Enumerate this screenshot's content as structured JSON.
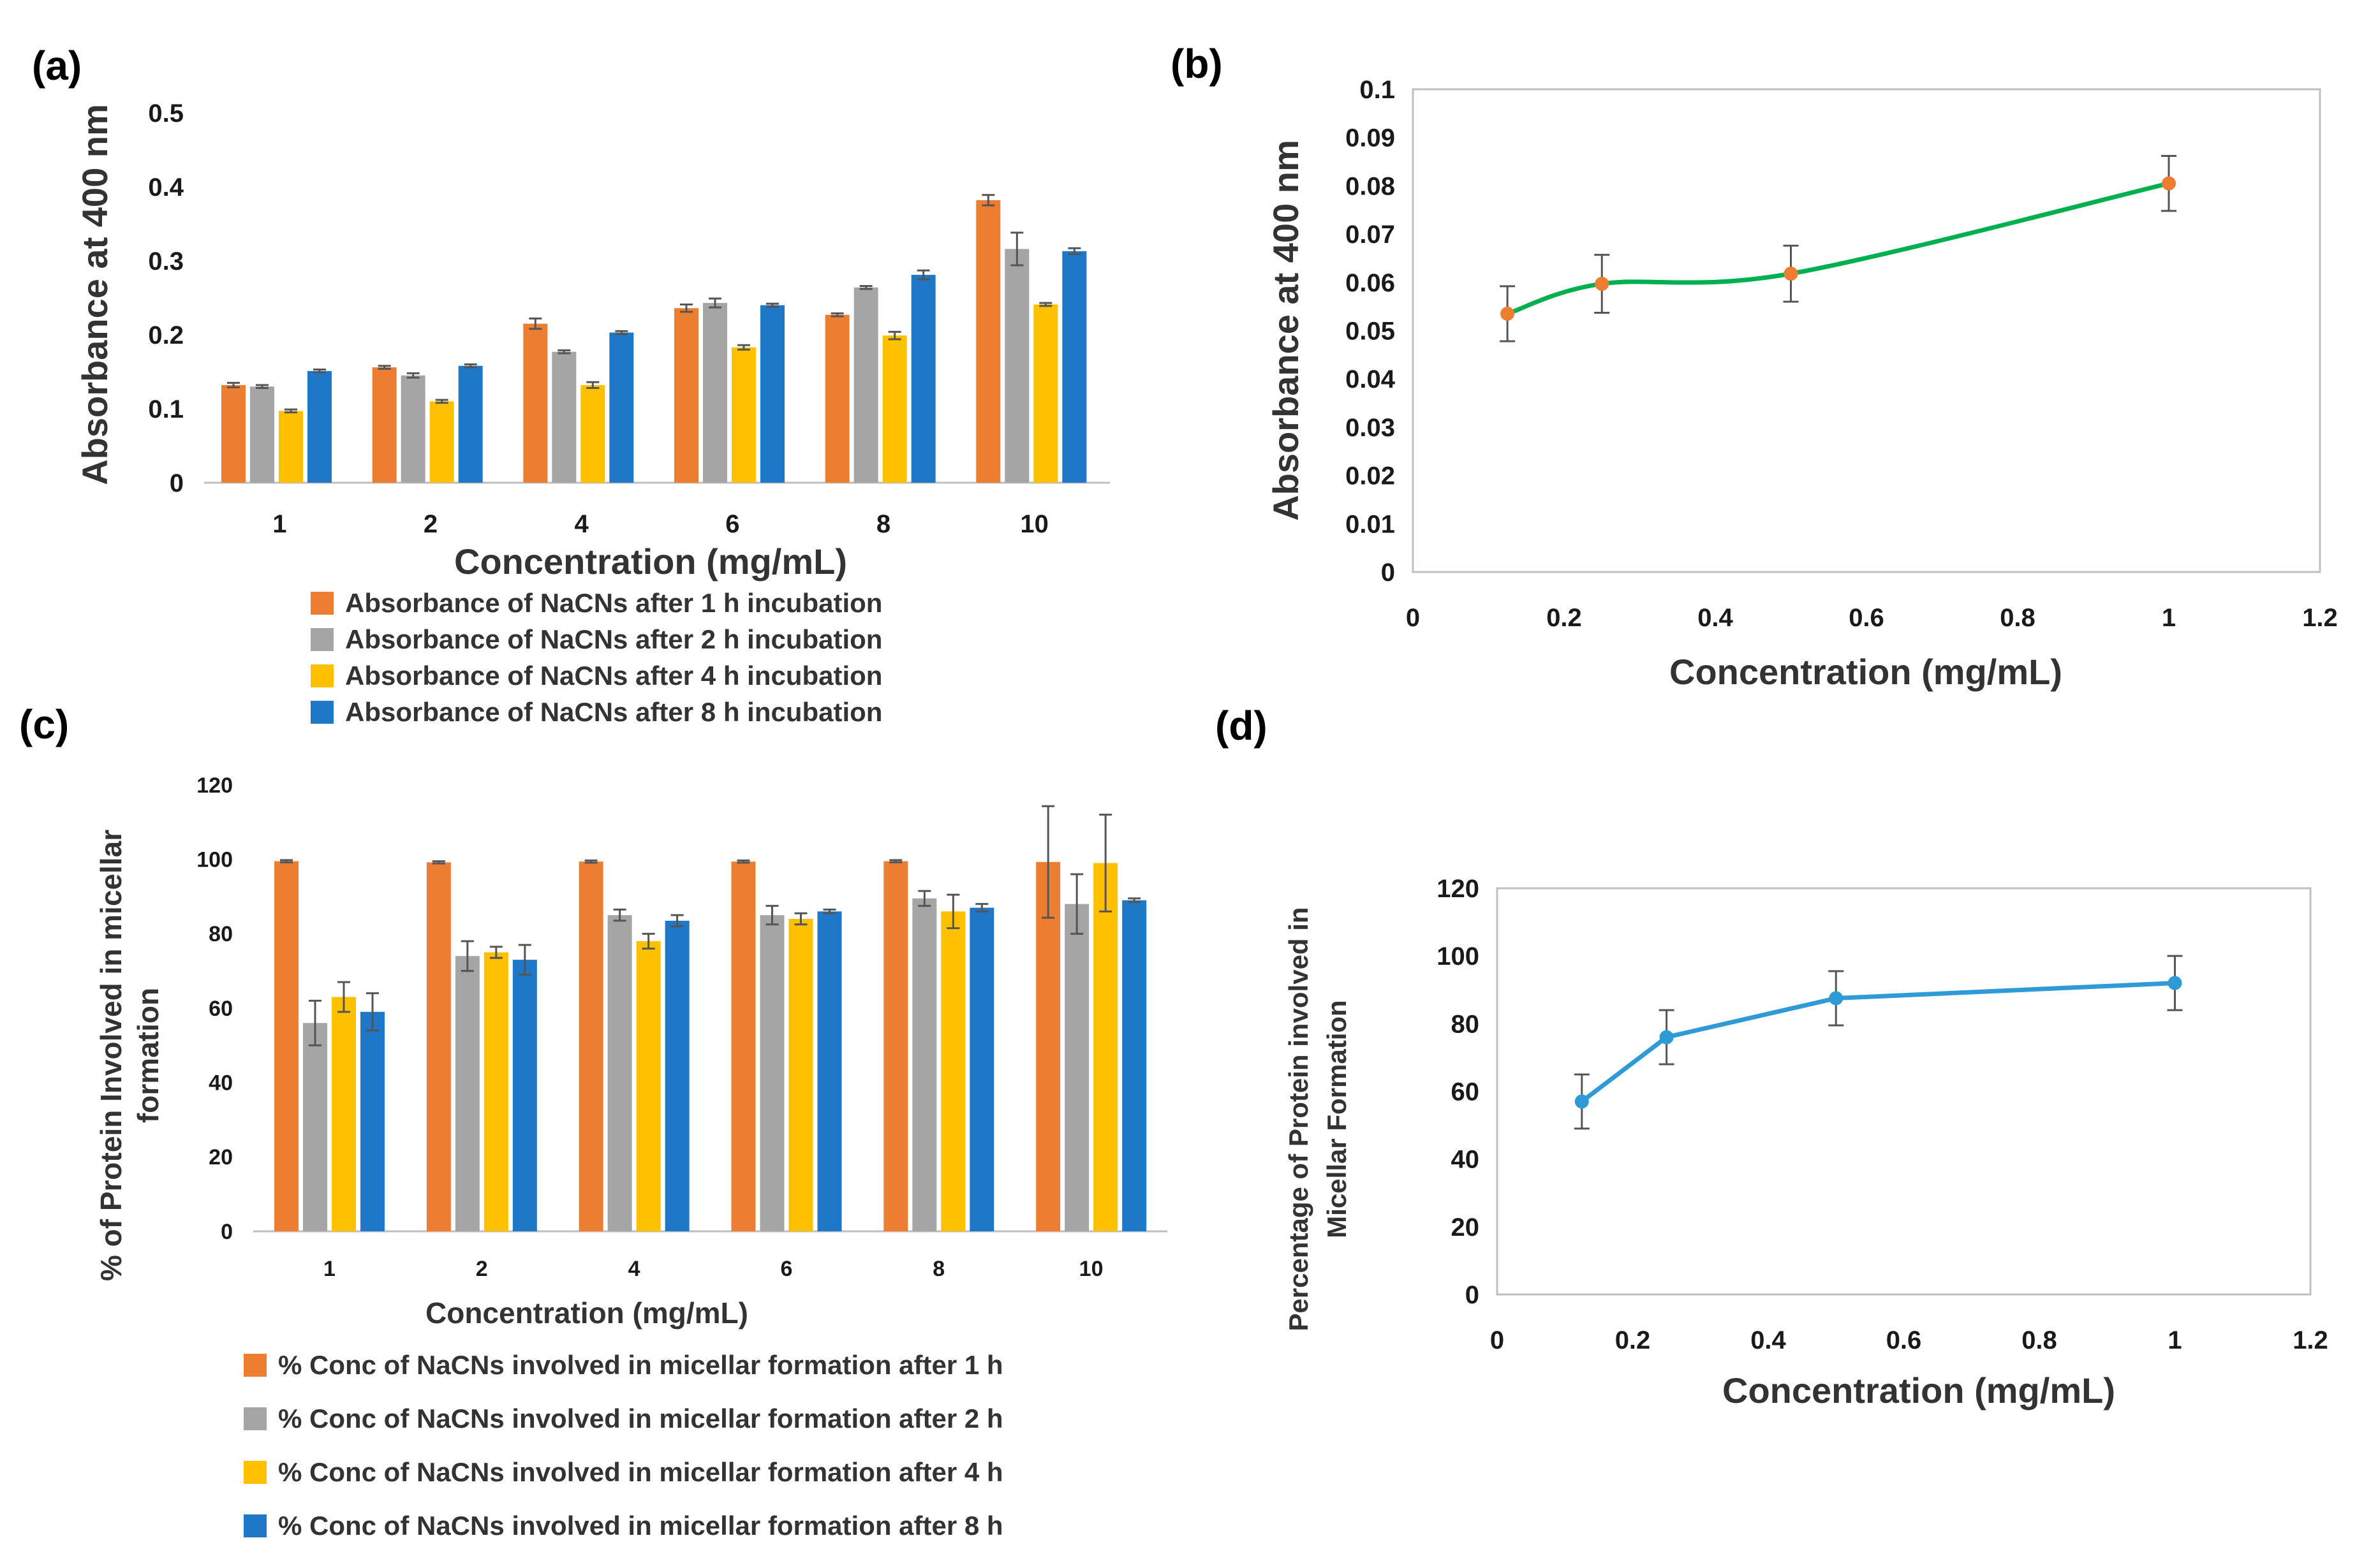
{
  "panels": {
    "a": "(a)",
    "b": "(b)",
    "c": "(c)",
    "d": "(d)"
  },
  "chart_data": [
    {
      "id": "a",
      "type": "bar",
      "title": "",
      "xlabel": "Concentration (mg/mL)",
      "ylabel": "Absorbance at 400 nm",
      "ylim": [
        0,
        0.5
      ],
      "yticks": [
        "0",
        "0.1",
        "0.2",
        "0.3",
        "0.4",
        "0.5"
      ],
      "categories": [
        "1",
        "2",
        "4",
        "6",
        "8",
        "10"
      ],
      "legend_position": "bottom",
      "series": [
        {
          "name": "Absorbance of NaCNs after 1 h incubation",
          "color": "#ED7D31",
          "values": [
            0.132,
            0.156,
            0.215,
            0.236,
            0.227,
            0.382
          ],
          "errors": [
            0.003,
            0.002,
            0.007,
            0.005,
            0.002,
            0.007
          ]
        },
        {
          "name": "Absorbance of NaCNs after 2 h incubation",
          "color": "#A5A5A5",
          "values": [
            0.13,
            0.145,
            0.177,
            0.243,
            0.264,
            0.316
          ],
          "errors": [
            0.002,
            0.003,
            0.002,
            0.006,
            0.002,
            0.022
          ]
        },
        {
          "name": "Absorbance of NaCNs after 4 h incubation",
          "color": "#FFC000",
          "values": [
            0.097,
            0.11,
            0.132,
            0.183,
            0.199,
            0.241
          ],
          "errors": [
            0.002,
            0.002,
            0.004,
            0.003,
            0.005,
            0.002
          ]
        },
        {
          "name": "Absorbance of NaCNs after 8 h incubation",
          "color": "#1F77C8",
          "values": [
            0.151,
            0.158,
            0.203,
            0.24,
            0.281,
            0.313
          ],
          "errors": [
            0.002,
            0.002,
            0.002,
            0.002,
            0.006,
            0.004
          ]
        }
      ]
    },
    {
      "id": "b",
      "type": "line",
      "smooth": true,
      "xlabel": "Concentration (mg/mL)",
      "ylabel": "Absorbance at 400 nm",
      "xlim": [
        0,
        1.2
      ],
      "ylim": [
        0,
        0.1
      ],
      "xticks": [
        "0",
        "0.2",
        "0.4",
        "0.6",
        "0.8",
        "1",
        "1.2"
      ],
      "yticks": [
        "0",
        "0.01",
        "0.02",
        "0.03",
        "0.04",
        "0.05",
        "0.06",
        "0.07",
        "0.08",
        "0.09",
        "0.1"
      ],
      "line_color": "#00B050",
      "marker_color": "#ED7D31",
      "x": [
        0.125,
        0.25,
        0.5,
        1
      ],
      "y": [
        0.0535,
        0.0597,
        0.0618,
        0.0805
      ],
      "errors": [
        0.0057,
        0.006,
        0.0058,
        0.0057
      ]
    },
    {
      "id": "c",
      "type": "bar",
      "xlabel": "Concentration (mg/mL)",
      "ylabel": "% of Protein Involved in micellar formation",
      "ylabel_lines": [
        "% of Protein Involved in micellar",
        "formation"
      ],
      "ylim": [
        0,
        120
      ],
      "yticks": [
        "0",
        "20",
        "40",
        "60",
        "80",
        "100",
        "120"
      ],
      "categories": [
        "1",
        "2",
        "4",
        "6",
        "8",
        "10"
      ],
      "legend_position": "bottom",
      "series": [
        {
          "name": "% Conc of  NaCNs involved in micellar formation after 1 h",
          "color": "#ED7D31",
          "values": [
            99.5,
            99.2,
            99.4,
            99.4,
            99.5,
            99.3
          ],
          "errors": [
            0.3,
            0.3,
            0.3,
            0.3,
            0.3,
            15
          ]
        },
        {
          "name": "% Conc of  NaCNs involved in micellar formation after 2 h",
          "color": "#A5A5A5",
          "values": [
            56,
            74,
            85,
            85,
            89.5,
            88
          ],
          "errors": [
            6,
            4,
            1.5,
            2.5,
            2,
            8
          ]
        },
        {
          "name": "% Conc of  NaCNs involved in micellar formation after 4 h",
          "color": "#FFC000",
          "values": [
            63,
            75,
            78,
            84,
            86,
            99
          ],
          "errors": [
            4,
            1.5,
            2,
            1.5,
            4.5,
            13
          ]
        },
        {
          "name": "% Conc of  NaCNs involved in micellar formation after 8 h",
          "color": "#1F77C8",
          "values": [
            59,
            73,
            83.5,
            86,
            87,
            89
          ],
          "errors": [
            5,
            4,
            1.5,
            0.5,
            1,
            0.5
          ]
        }
      ]
    },
    {
      "id": "d",
      "type": "line",
      "xlabel": "Concentration (mg/mL)",
      "ylabel": "Percentage of Protein involved in Micellar Formation",
      "ylabel_lines": [
        "Percentage of Protein involved in",
        "Micellar Formation"
      ],
      "xlim": [
        0,
        1.2
      ],
      "ylim": [
        0,
        120
      ],
      "xticks": [
        "0",
        "0.2",
        "0.4",
        "0.6",
        "0.8",
        "1",
        "1.2"
      ],
      "yticks": [
        "0",
        "20",
        "40",
        "60",
        "80",
        "100",
        "120"
      ],
      "line_color": "#2E9BD6",
      "marker_color": "#2E9BD6",
      "x": [
        0.125,
        0.25,
        0.5,
        1
      ],
      "y": [
        57,
        76,
        87.5,
        92
      ],
      "errors": [
        8,
        8,
        8,
        8
      ]
    }
  ]
}
